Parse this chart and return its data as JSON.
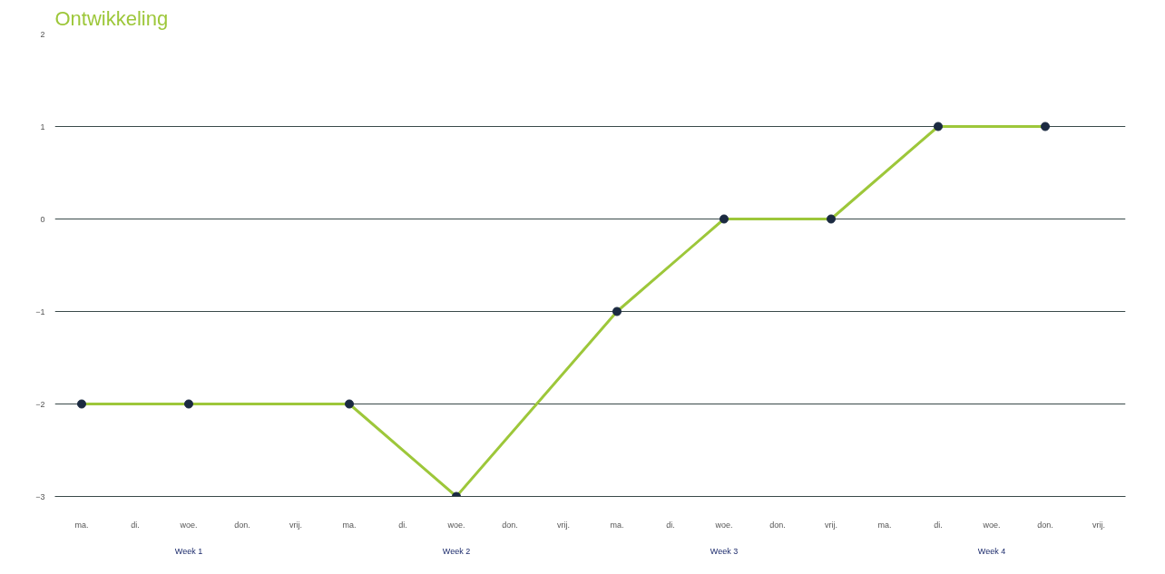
{
  "chart_data": {
    "type": "line",
    "title": "Ontwikkeling",
    "categories": [
      "ma.",
      "di.",
      "woe.",
      "don.",
      "vrij.",
      "ma.",
      "di.",
      "woe.",
      "don.",
      "vrij.",
      "ma.",
      "di.",
      "woe.",
      "don.",
      "vrij.",
      "ma.",
      "di.",
      "woe.",
      "don.",
      "vrij."
    ],
    "series": [
      {
        "color": "#9dc73a",
        "values": [
          -2,
          null,
          -2,
          null,
          null,
          -2,
          null,
          -3,
          null,
          null,
          -1,
          null,
          0,
          null,
          0,
          null,
          1,
          null,
          1,
          null
        ]
      }
    ],
    "annotations": [
      "Week 1",
      "Week 2",
      "Week 3",
      "Week 4"
    ],
    "ylim": [
      -3,
      2
    ],
    "yticks": [
      -3,
      -2,
      -1,
      0,
      1,
      2
    ],
    "grid": "y",
    "marker": "circle"
  }
}
